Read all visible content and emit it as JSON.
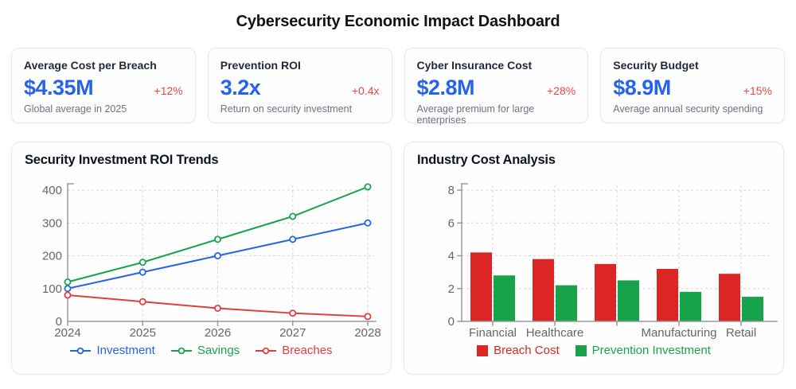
{
  "page": {
    "title": "Cybersecurity Economic Impact Dashboard"
  },
  "kpi_cards": [
    {
      "label": "Average Cost per Breach",
      "value": "$4.35M",
      "change": "+12%",
      "description": "Global average in 2025"
    },
    {
      "label": "Prevention ROI",
      "value": "3.2x",
      "change": "+0.4x",
      "description": "Return on security investment"
    },
    {
      "label": "Cyber Insurance Cost",
      "value": "$2.8M",
      "change": "+28%",
      "description": "Average premium for large enterprises"
    },
    {
      "label": "Security Budget",
      "value": "$8.9M",
      "change": "+15%",
      "description": "Average annual security spending"
    }
  ],
  "colors": {
    "kpi_value_blue": "#2563eb",
    "kpi_change_red": "#ef4444",
    "axis_gray": "#9a9a9f",
    "grid_gray": "#d7d7db",
    "tick_label_gray": "#666666"
  },
  "chart_data": [
    {
      "type": "line",
      "title": "Security Investment ROI Trends",
      "x": [
        2024,
        2025,
        2026,
        2027,
        2028
      ],
      "series": [
        {
          "name": "Investment",
          "color": "#2563eb",
          "values": [
            100,
            150,
            200,
            250,
            300
          ]
        },
        {
          "name": "Savings",
          "color": "#18a34d",
          "values": [
            120,
            180,
            250,
            320,
            410
          ]
        },
        {
          "name": "Breaches",
          "color": "#e23d3d",
          "values": [
            80,
            60,
            40,
            25,
            15
          ]
        }
      ],
      "xlabel": "",
      "ylabel": "",
      "ylim": [
        0,
        400
      ],
      "yticks": [
        0,
        100,
        200,
        300,
        400
      ],
      "grid": "dashed",
      "marker": "open-circle",
      "legend_position": "bottom"
    },
    {
      "type": "bar",
      "title": "Industry Cost Analysis",
      "categories": [
        "Financial",
        "Healthcare",
        "",
        "Manufacturing",
        "Retail"
      ],
      "series": [
        {
          "name": "Breach Cost",
          "color": "#dc2626",
          "values": [
            4.2,
            3.8,
            3.5,
            3.2,
            2.9
          ]
        },
        {
          "name": "Prevention Investment",
          "color": "#16a34a",
          "values": [
            2.8,
            2.2,
            2.5,
            1.8,
            1.5
          ]
        }
      ],
      "xlabel": "",
      "ylabel": "",
      "ylim": [
        0,
        8
      ],
      "yticks": [
        0,
        2,
        4,
        6,
        8
      ],
      "grid": "dashed",
      "legend_position": "bottom"
    }
  ]
}
